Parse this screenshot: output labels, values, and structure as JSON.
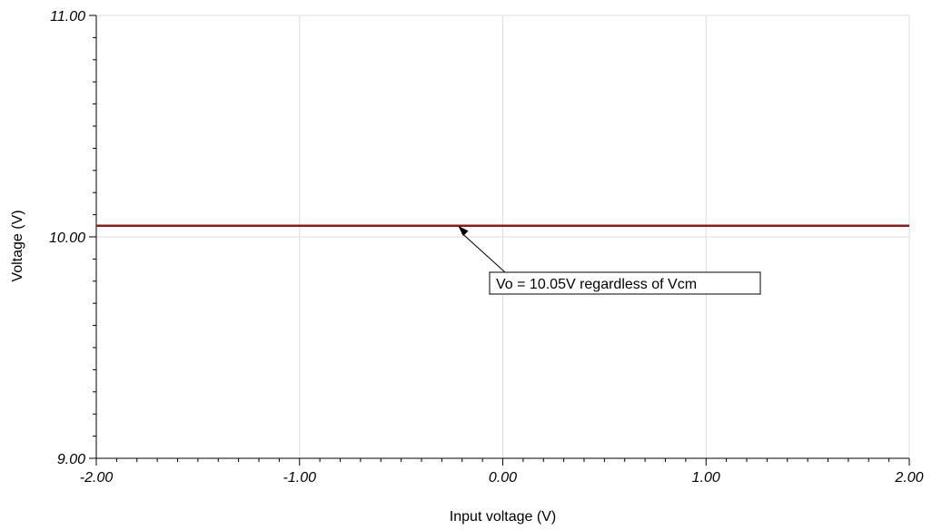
{
  "chart_data": {
    "type": "line",
    "title": "",
    "xlabel": "Input voltage (V)",
    "ylabel": "Voltage (V)",
    "xlim": [
      -2.0,
      2.0
    ],
    "ylim": [
      9.0,
      11.0
    ],
    "x_ticks": [
      -2.0,
      -1.0,
      0.0,
      1.0,
      2.0
    ],
    "x_tick_labels": [
      "-2.00",
      "-1.00",
      "0.00",
      "1.00",
      "2.00"
    ],
    "y_ticks": [
      9.0,
      10.0,
      11.0
    ],
    "y_tick_labels": [
      "9.00",
      "10.00",
      "11.00"
    ],
    "x_minor_step": 0.1,
    "y_minor_step": 0.1,
    "grid": true,
    "series": [
      {
        "color": "#8b1a1a",
        "x": [
          -2.0,
          2.0
        ],
        "y": [
          10.05,
          10.05
        ]
      }
    ],
    "annotations": [
      {
        "text": "Vo = 10.05V regardless of Vcm",
        "x": -0.22,
        "y": 10.05
      }
    ]
  }
}
